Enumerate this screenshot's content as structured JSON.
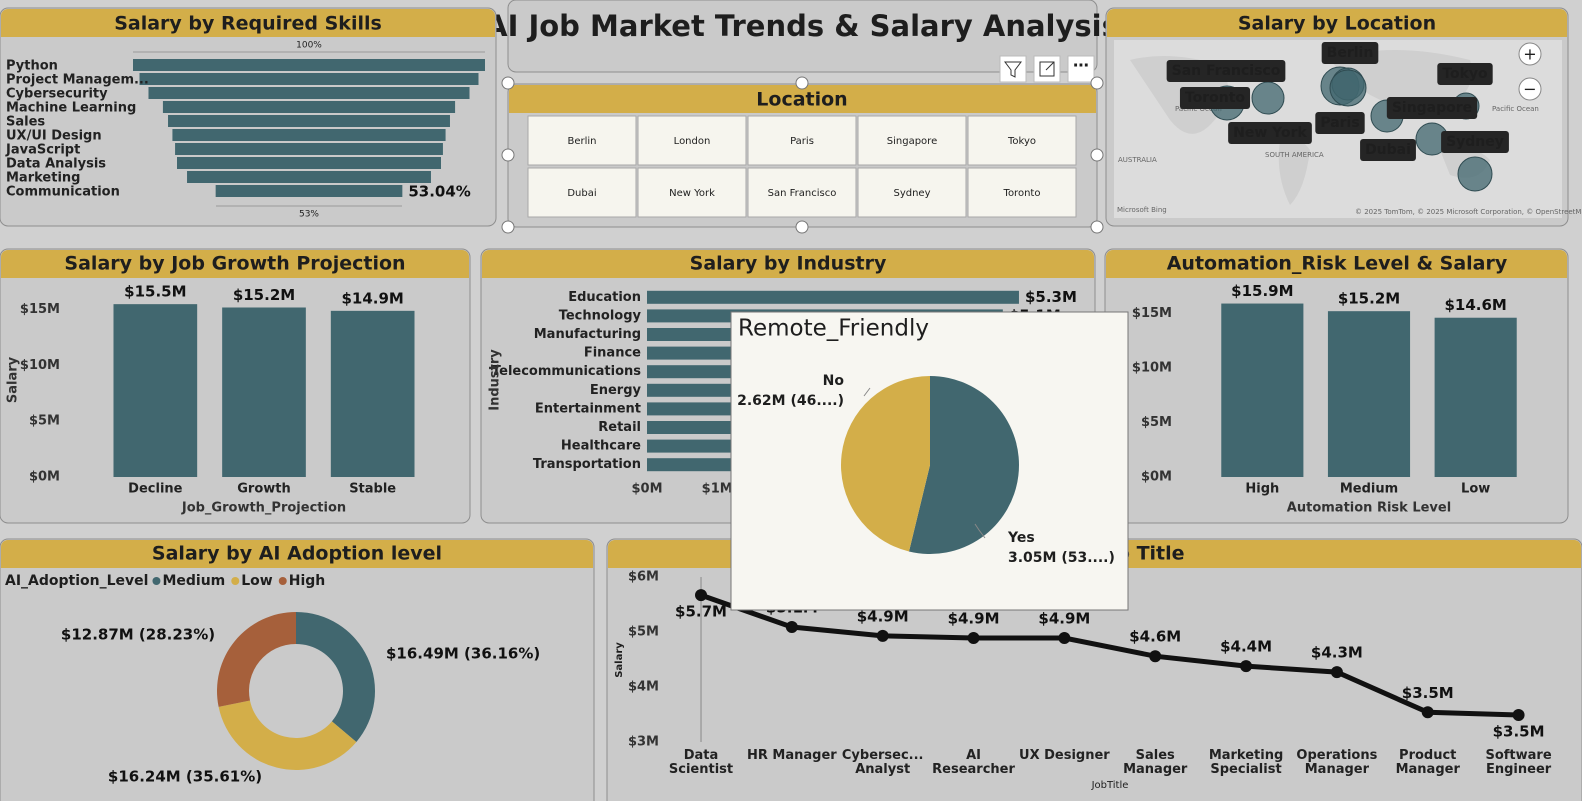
{
  "header": {
    "title": "AI Job Market Trends & Salary Analysis"
  },
  "slicer": {
    "title": "Location",
    "items": [
      "Berlin",
      "London",
      "Paris",
      "Singapore",
      "Tokyo",
      "Dubai",
      "New York",
      "San Francisco",
      "Sydney",
      "Toronto"
    ]
  },
  "map": {
    "title": "Salary by Location",
    "cities": [
      "San Francisco",
      "Berlin",
      "Tokyo",
      "Toronto",
      "Singapore",
      "New York",
      "Paris",
      "Dubai",
      "Sydney"
    ],
    "annotations": [
      "Pacific Ocean",
      "Pacific Ocean",
      "AUSTRALIA",
      "SOUTH AMERICA",
      "Microsoft Bing",
      "© 2025 TomTom, © 2025 Microsoft Corporation, © OpenStreetMap Terms"
    ]
  },
  "chart_data": [
    {
      "type": "funnel",
      "title": "Salary by Required Skills",
      "categories": [
        "Python",
        "Project Managem...",
        "Cybersecurity",
        "Machine Learning",
        "Sales",
        "UX/UI Design",
        "JavaScript",
        "Data Analysis",
        "Marketing",
        "Communication"
      ],
      "values": [
        100,
        96.3,
        91.2,
        83,
        80.1,
        77.6,
        76.1,
        75,
        69.3,
        53.04
      ],
      "value_labels": [
        null,
        null,
        null,
        null,
        null,
        null,
        null,
        null,
        null,
        "53.04%"
      ],
      "scale_labels": [
        "100%",
        "53%"
      ],
      "color": "#41676f"
    },
    {
      "type": "bar",
      "title": "Salary by Job Growth Projection",
      "categories": [
        "Decline",
        "Growth",
        "Stable"
      ],
      "values": [
        15500000,
        15200000,
        14900000
      ],
      "value_labels": [
        "$15.5M",
        "$15.2M",
        "$14.9M"
      ],
      "color": "#41676f",
      "xlabel": "Job_Growth_Projection",
      "ylabel": "Salary",
      "ylim": [
        0,
        16500000
      ],
      "yticks": [
        {
          "value": 0,
          "label": "$0M"
        },
        {
          "value": 5000000,
          "label": "$5M"
        },
        {
          "value": 10000000,
          "label": "$10M"
        },
        {
          "value": 15000000,
          "label": "$15M"
        }
      ]
    },
    {
      "type": "bar",
      "orientation": "horizontal",
      "title": "Salary by Industry",
      "categories": [
        "Education",
        "Technology",
        "Manufacturing",
        "Finance",
        "Telecommunications",
        "Energy",
        "Entertainment",
        "Retail",
        "Healthcare",
        "Transportation"
      ],
      "values": [
        5300000,
        5070000,
        5000000,
        4900000,
        4900000,
        4800000,
        4800000,
        4700000,
        4600000,
        4500000
      ],
      "value_labels": [
        "$5.3M",
        "$5.1M",
        null,
        null,
        null,
        null,
        null,
        null,
        null,
        null
      ],
      "color": "#41676f",
      "ylabel": "Industry",
      "xlim": [
        0,
        5500000
      ],
      "xticks": [
        {
          "value": 0,
          "label": "$0M"
        },
        {
          "value": 1000000,
          "label": "$1M"
        }
      ]
    },
    {
      "type": "bar",
      "title": "Automation_Risk Level & Salary",
      "categories": [
        "High",
        "Medium",
        "Low"
      ],
      "values": [
        15900000,
        15200000,
        14600000
      ],
      "value_labels": [
        "$15.9M",
        "$15.2M",
        "$14.6M"
      ],
      "color": "#41676f",
      "xlabel": "Automation Risk Level",
      "ylim": [
        0,
        16500000
      ],
      "yticks": [
        {
          "value": 0,
          "label": "$0M"
        },
        {
          "value": 5000000,
          "label": "$5M"
        },
        {
          "value": 10000000,
          "label": "$10M"
        },
        {
          "value": 15000000,
          "label": "$15M"
        }
      ]
    },
    {
      "type": "donut",
      "title": "Salary by AI Adoption level",
      "legend_title": "AI_Adoption_Level",
      "categories": [
        "Medium",
        "Low",
        "High"
      ],
      "values": [
        16490000,
        16240000,
        12870000
      ],
      "value_labels": [
        "$16.49M (36.16%)",
        "$16.24M (35.61%)",
        "$12.87M (28.23%)"
      ],
      "colors": [
        "#41676f",
        "#d3ae49",
        "#a6603b"
      ]
    },
    {
      "type": "line",
      "title": "Salary by Job Title",
      "categories": [
        "Data Scientist",
        "HR Manager",
        "Cybersec... Analyst",
        "AI Researcher",
        "UX Designer",
        "Sales Manager",
        "Marketing Specialist",
        "Operations Manager",
        "Product Manager",
        "Software Engineer"
      ],
      "values": [
        5670000,
        5090000,
        4930000,
        4890000,
        4890000,
        4560000,
        4380000,
        4270000,
        3540000,
        3490000
      ],
      "value_labels": [
        "$5.7M",
        "$5.1M",
        "$4.9M",
        "$4.9M",
        "$4.9M",
        "$4.6M",
        "$4.4M",
        "$4.3M",
        "$3.5M",
        "$3.5M"
      ],
      "color": "#111111",
      "xlabel": "JobTitle",
      "ylabel": "Salary",
      "ylim": [
        2900000,
        6100000
      ],
      "yticks": [
        {
          "value": 3000000,
          "label": "$3M"
        },
        {
          "value": 4000000,
          "label": "$4M"
        },
        {
          "value": 5000000,
          "label": "$5M"
        },
        {
          "value": 6000000,
          "label": "$6M"
        }
      ]
    },
    {
      "type": "pie",
      "title": "Remote_Friendly",
      "categories": [
        "Yes",
        "No"
      ],
      "values": [
        3050000,
        2620000
      ],
      "value_labels": [
        "3.05M (53....)",
        "2.62M (46....)"
      ],
      "colors": [
        "#41676f",
        "#d3ae49"
      ]
    }
  ]
}
